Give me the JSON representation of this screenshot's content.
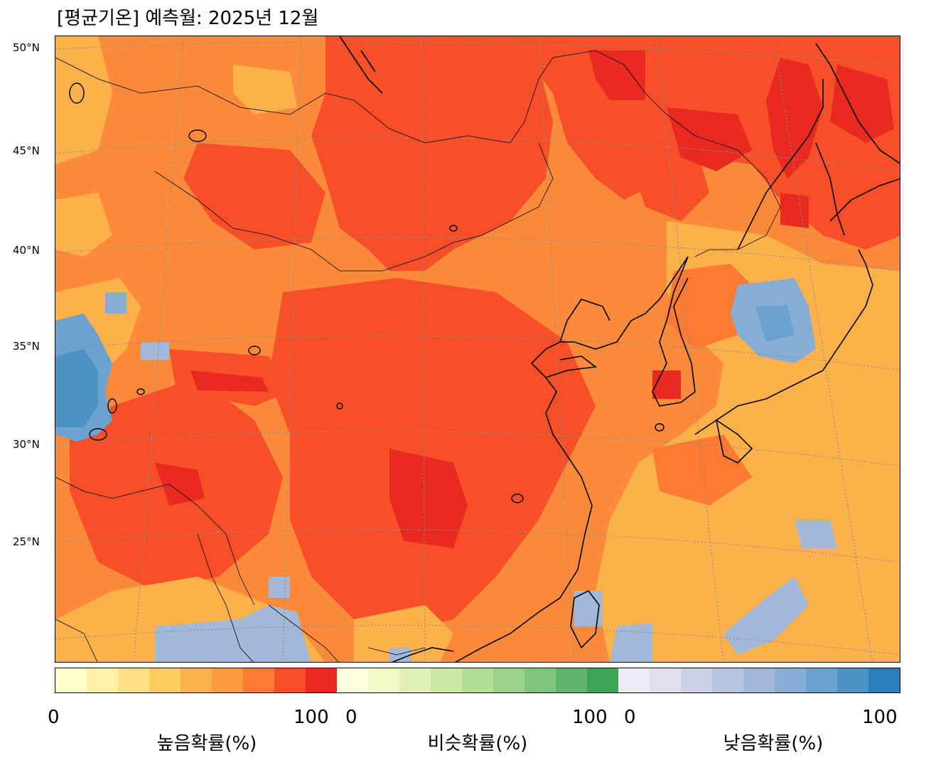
{
  "title": "[평균기온] 예측월: 2025년 12월",
  "map": {
    "projection": "conic",
    "lat_labels": [
      "50°N",
      "45°N",
      "40°N",
      "35°N",
      "30°N",
      "25°N"
    ],
    "gridline_color": "#8c8c8c",
    "coastline_color": "#000000",
    "regions": [
      {
        "category": "high",
        "level": 100,
        "area": "Manchuria / Northeast"
      },
      {
        "category": "high",
        "level": 90,
        "area": "Central & South China"
      },
      {
        "category": "high",
        "level": 80,
        "area": "Mongolia, North China, Korea"
      },
      {
        "category": "high",
        "level": 60,
        "area": "Japan, East China Sea, Western Pacific"
      },
      {
        "category": "low",
        "level": 60,
        "area": "Tibetan Plateau west"
      },
      {
        "category": "low",
        "level": 45,
        "area": "Sea of Japan"
      },
      {
        "category": "low",
        "level": 40,
        "area": "Southeast Asia north"
      },
      {
        "category": "low",
        "level": 40,
        "area": "Western Pacific south"
      }
    ]
  },
  "colorbar": {
    "groups": [
      {
        "label": "높음확률(%)",
        "min": "0",
        "max": "100",
        "colors": [
          "#ffffcc",
          "#fff1a8",
          "#fee187",
          "#fecc5c",
          "#fdb14b",
          "#fd9a41",
          "#fc7a32",
          "#f74f28",
          "#e82a21"
        ]
      },
      {
        "label": "비슷확률(%)",
        "min": "0",
        "max": "100",
        "colors": [
          "#ffffe0",
          "#f1f9c7",
          "#dff0b4",
          "#cbe8a4",
          "#b4de96",
          "#9ad388",
          "#7ec67b",
          "#5eb56b",
          "#3fa358"
        ]
      },
      {
        "label": "낮음확률(%)",
        "min": "0",
        "max": "100",
        "colors": [
          "#eeeaf3",
          "#dfdfee",
          "#cdd1e5",
          "#b8c4df",
          "#a1b8d9",
          "#86aed4",
          "#6ba3ce",
          "#4c93c5",
          "#2a7fbb"
        ]
      }
    ]
  }
}
